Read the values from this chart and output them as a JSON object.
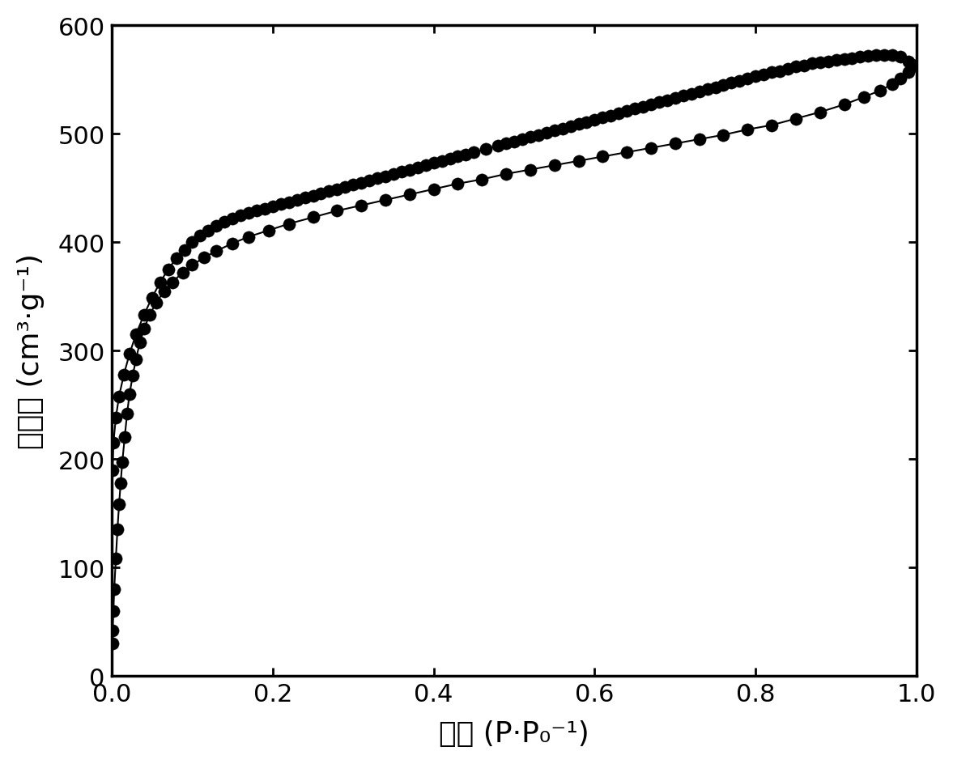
{
  "adsorption_x": [
    0.0005,
    0.001,
    0.002,
    0.003,
    0.005,
    0.007,
    0.009,
    0.011,
    0.013,
    0.016,
    0.019,
    0.022,
    0.026,
    0.03,
    0.035,
    0.04,
    0.047,
    0.055,
    0.065,
    0.075,
    0.088,
    0.1,
    0.115,
    0.13,
    0.15,
    0.17,
    0.195,
    0.22,
    0.25,
    0.28,
    0.31,
    0.34,
    0.37,
    0.4,
    0.43,
    0.46,
    0.49,
    0.52,
    0.55,
    0.58,
    0.61,
    0.64,
    0.67,
    0.7,
    0.73,
    0.76,
    0.79,
    0.82,
    0.85,
    0.88,
    0.91,
    0.935,
    0.955,
    0.97,
    0.98,
    0.99,
    0.997
  ],
  "adsorption_y": [
    30,
    42,
    60,
    80,
    108,
    135,
    158,
    178,
    197,
    220,
    242,
    260,
    277,
    292,
    308,
    320,
    333,
    344,
    355,
    363,
    372,
    379,
    386,
    392,
    399,
    405,
    411,
    417,
    423,
    429,
    434,
    439,
    444,
    449,
    454,
    458,
    463,
    467,
    471,
    475,
    479,
    483,
    487,
    491,
    495,
    499,
    504,
    508,
    514,
    520,
    527,
    534,
    540,
    546,
    551,
    557,
    563
  ],
  "desorption_x": [
    0.997,
    0.99,
    0.98,
    0.97,
    0.96,
    0.95,
    0.94,
    0.93,
    0.92,
    0.91,
    0.9,
    0.89,
    0.88,
    0.87,
    0.86,
    0.85,
    0.84,
    0.83,
    0.82,
    0.81,
    0.8,
    0.79,
    0.78,
    0.77,
    0.76,
    0.75,
    0.74,
    0.73,
    0.72,
    0.71,
    0.7,
    0.69,
    0.68,
    0.67,
    0.66,
    0.65,
    0.64,
    0.63,
    0.62,
    0.61,
    0.6,
    0.59,
    0.58,
    0.57,
    0.56,
    0.55,
    0.54,
    0.53,
    0.52,
    0.51,
    0.5,
    0.49,
    0.48,
    0.465,
    0.45,
    0.44,
    0.43,
    0.42,
    0.41,
    0.4,
    0.39,
    0.38,
    0.37,
    0.36,
    0.35,
    0.34,
    0.33,
    0.32,
    0.31,
    0.3,
    0.29,
    0.28,
    0.27,
    0.26,
    0.25,
    0.24,
    0.23,
    0.22,
    0.21,
    0.2,
    0.19,
    0.18,
    0.17,
    0.16,
    0.15,
    0.14,
    0.13,
    0.12,
    0.11,
    0.1,
    0.09,
    0.08,
    0.07,
    0.06,
    0.05,
    0.04,
    0.03,
    0.022,
    0.015,
    0.009,
    0.005,
    0.002,
    0.001
  ],
  "desorption_y": [
    563,
    567,
    571,
    573,
    573,
    573,
    572,
    571,
    570,
    569,
    568,
    567,
    566,
    565,
    563,
    562,
    560,
    558,
    557,
    555,
    553,
    551,
    549,
    547,
    545,
    543,
    541,
    539,
    537,
    535,
    533,
    531,
    529,
    527,
    525,
    523,
    521,
    519,
    517,
    515,
    513,
    511,
    509,
    507,
    505,
    503,
    501,
    499,
    497,
    495,
    493,
    491,
    489,
    486,
    483,
    481,
    479,
    477,
    475,
    473,
    471,
    469,
    467,
    465,
    463,
    461,
    459,
    457,
    455,
    453,
    451,
    449,
    447,
    445,
    443,
    441,
    439,
    437,
    435,
    433,
    431,
    429,
    427,
    425,
    422,
    419,
    415,
    411,
    406,
    400,
    393,
    385,
    375,
    363,
    349,
    333,
    315,
    297,
    278,
    258,
    238,
    215,
    190
  ],
  "marker_color": "#000000",
  "line_color": "#000000",
  "marker_size": 11,
  "line_width": 1.5,
  "xlim": [
    0.0,
    1.0
  ],
  "ylim": [
    0,
    600
  ],
  "xticks": [
    0.0,
    0.2,
    0.4,
    0.6,
    0.8,
    1.0
  ],
  "yticks": [
    0,
    100,
    200,
    300,
    400,
    500,
    600
  ],
  "background_color": "#ffffff",
  "tick_fontsize": 22,
  "label_fontsize": 26,
  "spine_linewidth": 2.5
}
